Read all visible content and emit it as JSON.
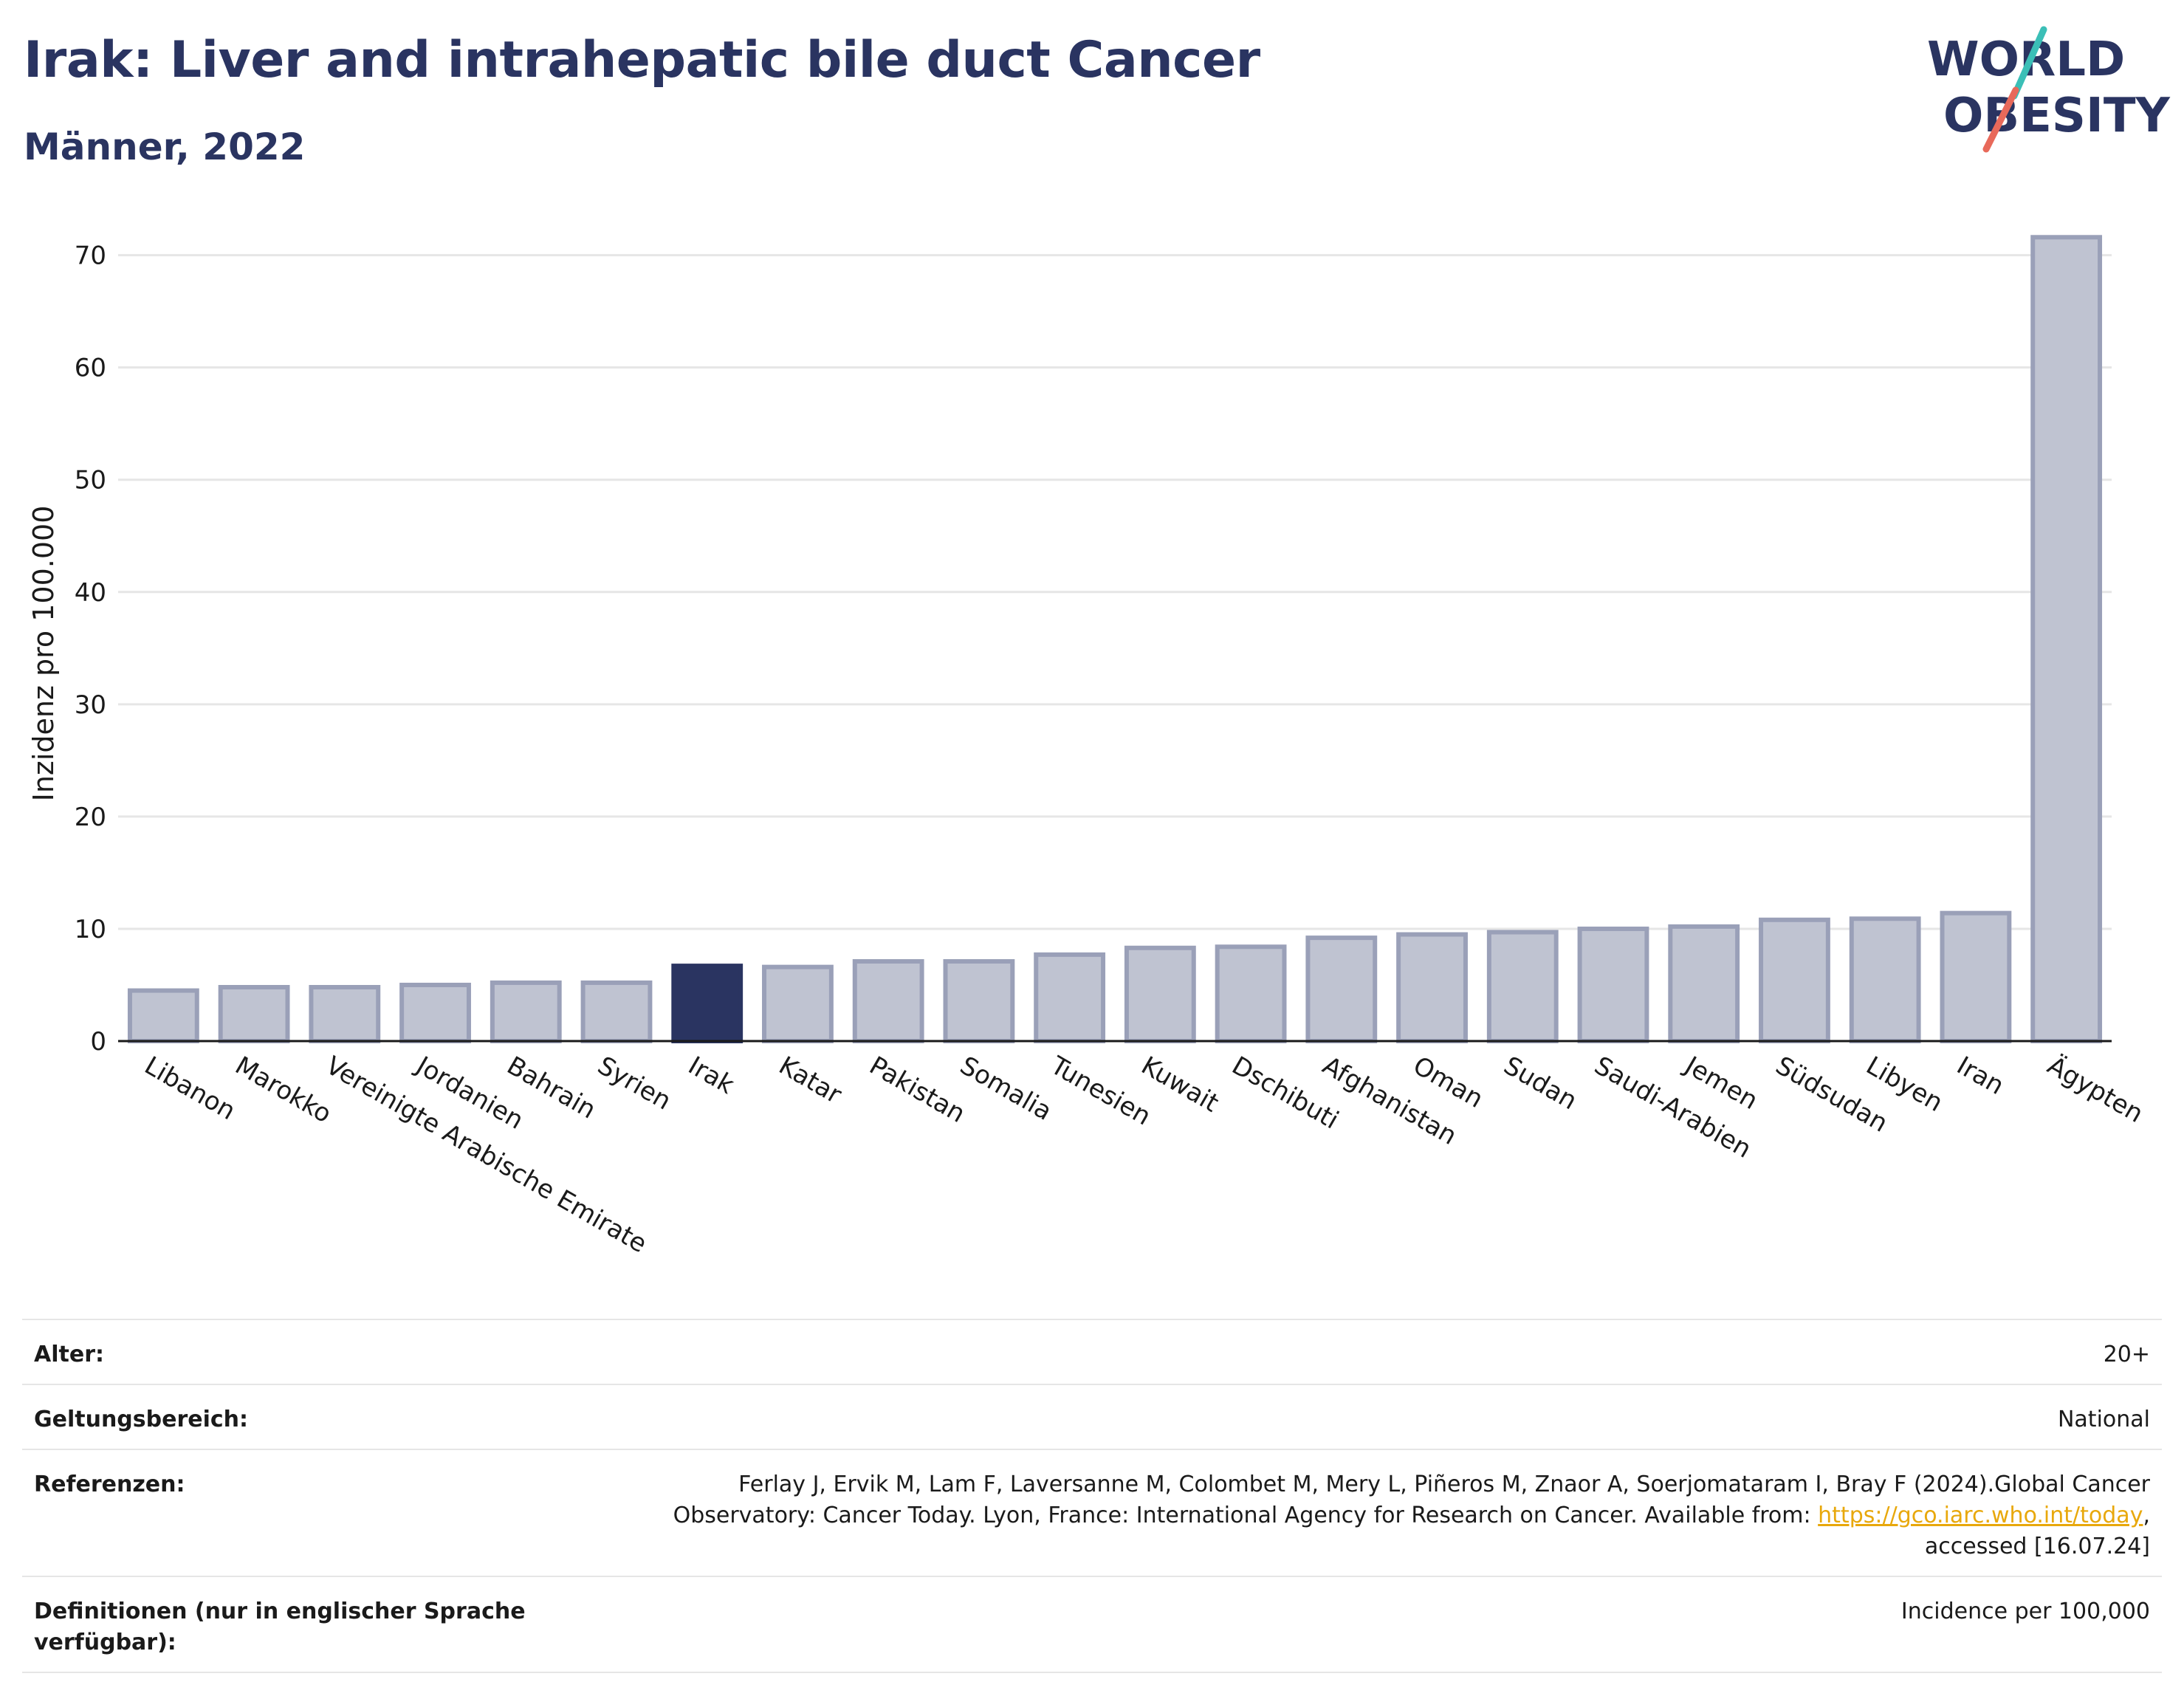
{
  "header": {
    "title": "Irak: Liver and intrahepatic bile duct Cancer",
    "subtitle": "Männer, 2022"
  },
  "logo": {
    "line1": "WORLD",
    "line2": "OBESITY",
    "accent_teal": "#3bbfb7",
    "accent_coral": "#e8695a"
  },
  "colors": {
    "bar_default": "#bfc3d1",
    "bar_default_stroke": "#9aa0b8",
    "bar_highlight": "#2a3461",
    "grid": "#e6e6e6",
    "text_dark": "#2a3461"
  },
  "chart_data": {
    "type": "bar",
    "title": "Irak: Liver and intrahepatic bile duct Cancer",
    "subtitle": "Männer, 2022",
    "xlabel": "",
    "ylabel": "Inzidenz pro 100.000",
    "ylim": [
      0,
      73
    ],
    "yticks": [
      0,
      10,
      20,
      30,
      40,
      50,
      60,
      70
    ],
    "grid": true,
    "highlight": "Irak",
    "categories": [
      "Libanon",
      "Marokko",
      "Vereinigte Arabische Emirate",
      "Jordanien",
      "Bahrain",
      "Syrien",
      "Irak",
      "Katar",
      "Pakistan",
      "Somalia",
      "Tunesien",
      "Kuwait",
      "Dschibuti",
      "Afghanistan",
      "Oman",
      "Sudan",
      "Saudi-Arabien",
      "Jemen",
      "Südsudan",
      "Libyen",
      "Iran",
      "Ägypten"
    ],
    "values": [
      4.5,
      4.8,
      4.8,
      5.0,
      5.2,
      5.2,
      6.7,
      6.6,
      7.1,
      7.1,
      7.7,
      8.3,
      8.4,
      9.2,
      9.5,
      9.7,
      10.0,
      10.2,
      10.8,
      10.9,
      11.4,
      71.6
    ]
  },
  "meta": {
    "rows": [
      {
        "key": "Alter:",
        "value": "20+"
      },
      {
        "key": "Geltungsbereich:",
        "value": "National"
      },
      {
        "key": "Referenzen:",
        "value_pre": "Ferlay J, Ervik M, Lam F, Laversanne M, Colombet M, Mery L, Piñeros M, Znaor A, Soerjomataram I, Bray F (2024).Global Cancer Observatory: Cancer Today. Lyon, France: International Agency for Research on Cancer. Available from: ",
        "link": "https://gco.iarc.who.int/today",
        "value_post": ", accessed [16.07.24]"
      },
      {
        "key": "Definitionen (nur in englischer Sprache verfügbar):",
        "value": "Incidence per 100,000"
      }
    ]
  }
}
